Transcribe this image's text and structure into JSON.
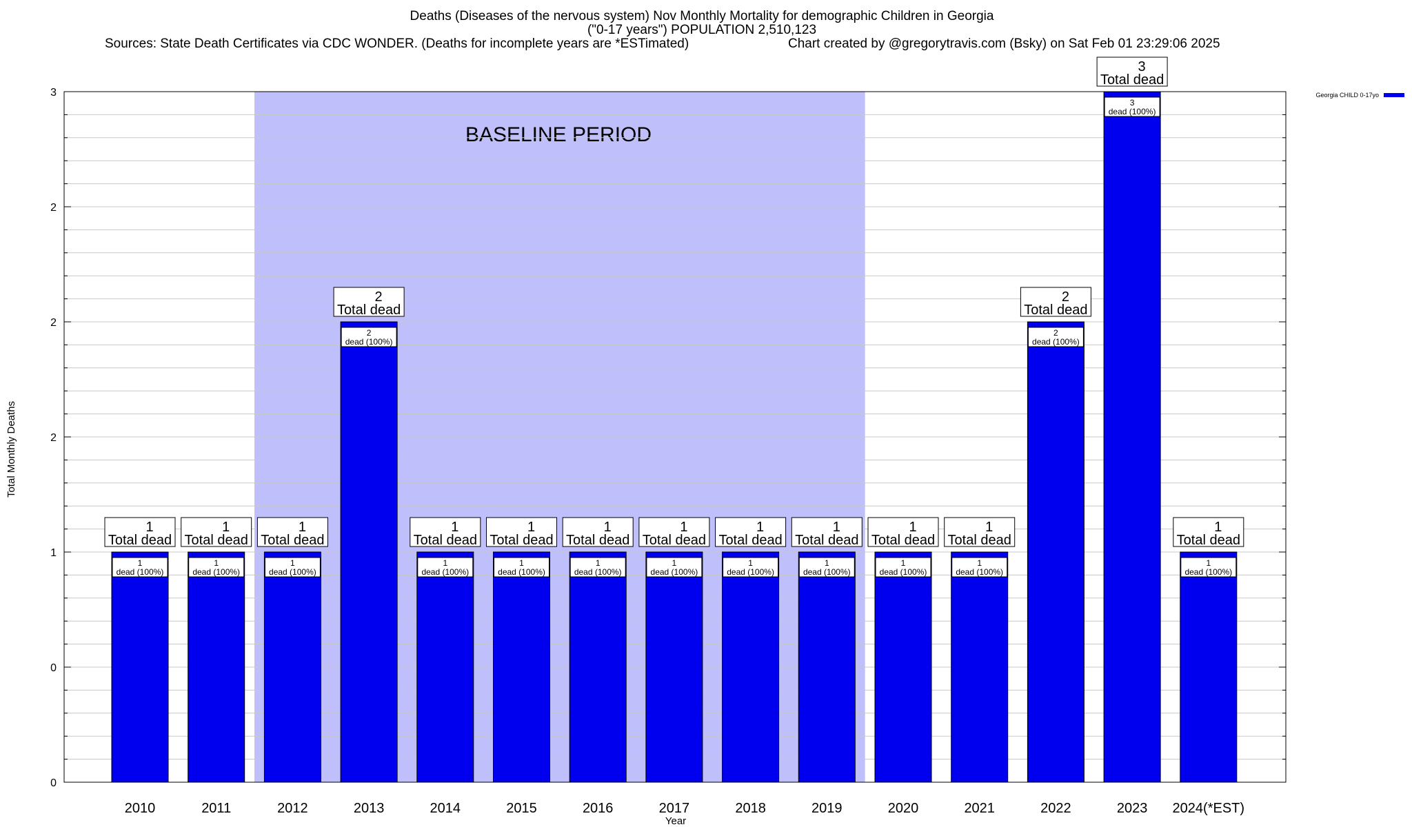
{
  "title": {
    "line1": "Deaths (Diseases of the nervous system) Nov Monthly Mortality for demographic Children in Georgia",
    "line2": "(\"0-17 years\") POPULATION 2,510,123",
    "sources": "Sources: State Death Certificates via CDC WONDER. (Deaths for incomplete years are *ESTimated)",
    "credit": "Chart created by @gregorytravis.com (Bsky) on Sat Feb 01 23:29:06 2025"
  },
  "colors": {
    "bar": "#0000ee",
    "baseline_shade": "#bfbffb",
    "grid": "#c8c8c8"
  },
  "chart_data": {
    "type": "bar",
    "title": "Deaths (Diseases of the nervous system) Nov Monthly Mortality for demographic Children in Georgia",
    "xlabel": "Year",
    "ylabel": "Total Monthly Deaths",
    "ylim": [
      0,
      3
    ],
    "ytick_labels": [
      "0",
      "0",
      "1",
      "2",
      "2",
      "2",
      "3"
    ],
    "categories": [
      "2010",
      "2011",
      "2012",
      "2013",
      "2014",
      "2015",
      "2016",
      "2017",
      "2018",
      "2019",
      "2020",
      "2021",
      "2022",
      "2023",
      "2024(*EST)"
    ],
    "series": [
      {
        "name": "Georgia CHILD 0-17yo",
        "values": [
          1,
          1,
          1,
          2,
          1,
          1,
          1,
          1,
          1,
          1,
          1,
          1,
          2,
          3,
          1
        ]
      }
    ],
    "top_labels": [
      "1",
      "1",
      "1",
      "2",
      "1",
      "1",
      "1",
      "1",
      "1",
      "1",
      "1",
      "1",
      "2",
      "3",
      "1"
    ],
    "top_label_caption": "Total dead",
    "inner_labels": [
      "1",
      "1",
      "1",
      "2",
      "1",
      "1",
      "1",
      "1",
      "1",
      "1",
      "1",
      "1",
      "2",
      "3",
      "1"
    ],
    "inner_label_caption": "dead (100%)",
    "baseline": {
      "label": "BASELINE PERIOD",
      "from": "2012",
      "to": "2019"
    },
    "grid": true,
    "legend": "top-right"
  }
}
